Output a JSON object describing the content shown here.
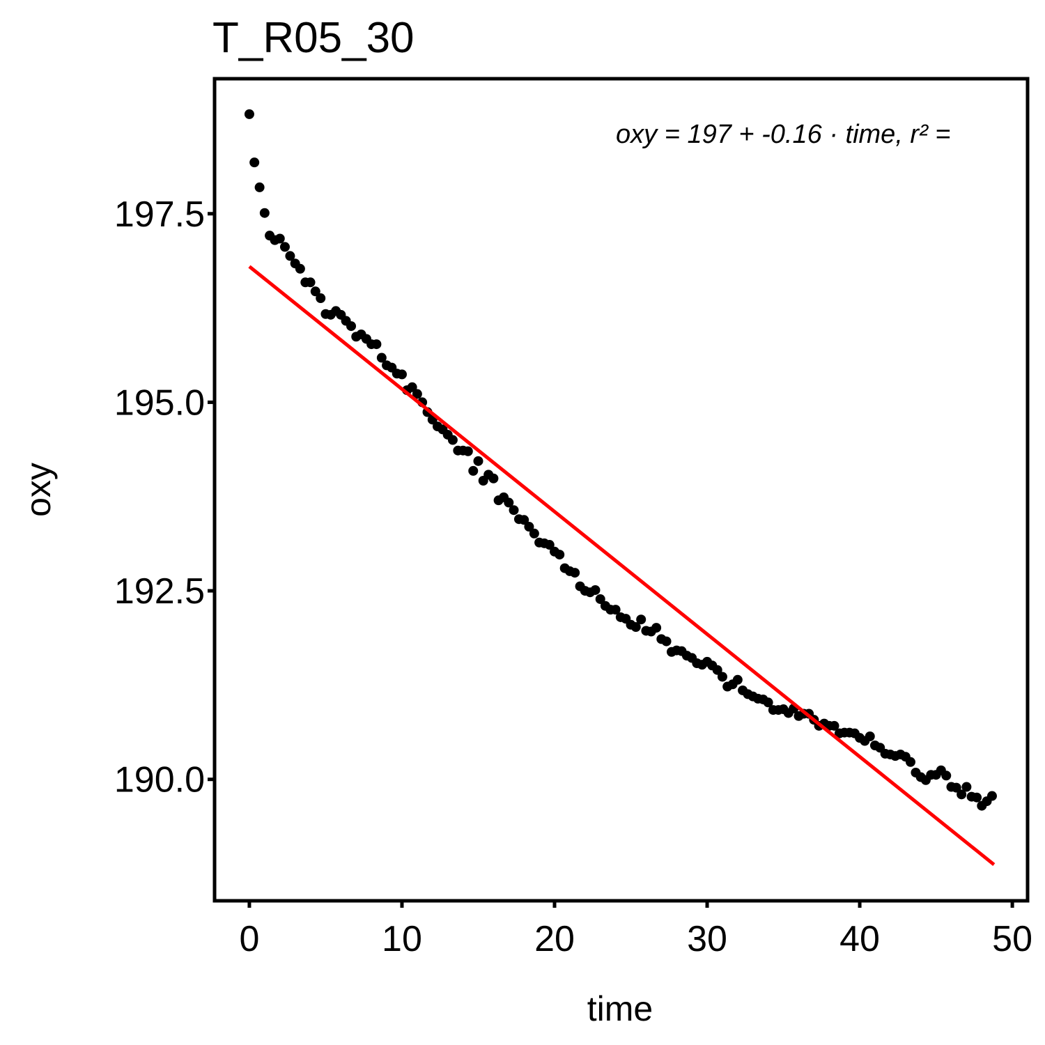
{
  "chart_data": {
    "type": "scatter",
    "title": "T_R05_30",
    "x_label": "time",
    "y_label": "oxy",
    "annotation": "oxy = 197 + -0.16 · time,  r² =",
    "xlim": [
      -2.28,
      51.0
    ],
    "ylim": [
      188.39,
      199.29
    ],
    "xticks": [
      0,
      10,
      20,
      30,
      40,
      50
    ],
    "yticks": [
      {
        "value": 190,
        "label": "190.0"
      },
      192.5,
      {
        "value": 195,
        "label": "195.0"
      },
      197.5
    ],
    "point_color": "#000000",
    "x": [
      0,
      0.33,
      0.67,
      1,
      1.33,
      1.67,
      2,
      2.33,
      2.67,
      3,
      3.33,
      3.67,
      4,
      4.33,
      4.67,
      5,
      5.33,
      5.67,
      6,
      6.33,
      6.67,
      7,
      7.33,
      7.67,
      8,
      8.33,
      8.67,
      9,
      9.33,
      9.67,
      10,
      10.33,
      10.67,
      11,
      11.33,
      11.67,
      12,
      12.33,
      12.67,
      13,
      13.33,
      13.67,
      14,
      14.33,
      14.67,
      15,
      15.33,
      15.67,
      16,
      16.33,
      16.67,
      17,
      17.33,
      17.67,
      18,
      18.33,
      18.67,
      19,
      19.33,
      19.67,
      20,
      20.33,
      20.67,
      21,
      21.33,
      21.67,
      22,
      22.33,
      22.67,
      23,
      23.33,
      23.67,
      24,
      24.33,
      24.67,
      25,
      25.33,
      25.67,
      26,
      26.33,
      26.67,
      27,
      27.33,
      27.67,
      28,
      28.33,
      28.67,
      29,
      29.33,
      29.67,
      30,
      30.33,
      30.67,
      31,
      31.33,
      31.67,
      32,
      32.33,
      32.67,
      33,
      33.33,
      33.67,
      34,
      34.33,
      34.67,
      35,
      35.33,
      35.67,
      36,
      36.33,
      36.67,
      37,
      37.33,
      37.67,
      38,
      38.33,
      38.67,
      39,
      39.33,
      39.67,
      40,
      40.33,
      40.67,
      41,
      41.33,
      41.67,
      42,
      42.33,
      42.67,
      43,
      43.33,
      43.67,
      44,
      44.33,
      44.67,
      45,
      45.33,
      45.67,
      46,
      46.33,
      46.67,
      47,
      47.33,
      47.67,
      48,
      48.33,
      48.67
    ],
    "values": [
      198.82,
      198.18,
      197.85,
      197.51,
      197.21,
      197.15,
      197.17,
      197.06,
      196.94,
      196.84,
      196.77,
      196.59,
      196.59,
      196.47,
      196.38,
      196.17,
      196.16,
      196.21,
      196.16,
      196.08,
      196.01,
      195.87,
      195.9,
      195.84,
      195.77,
      195.77,
      195.59,
      195.49,
      195.46,
      195.38,
      195.37,
      195.16,
      195.2,
      195.11,
      195.0,
      194.87,
      194.77,
      194.68,
      194.64,
      194.57,
      194.5,
      194.36,
      194.36,
      194.35,
      194.09,
      194.22,
      193.96,
      194.04,
      193.99,
      193.7,
      193.74,
      193.67,
      193.57,
      193.45,
      193.44,
      193.35,
      193.26,
      193.14,
      193.13,
      193.11,
      193.02,
      192.98,
      192.8,
      192.76,
      192.74,
      192.56,
      192.5,
      192.48,
      192.51,
      192.39,
      192.3,
      192.25,
      192.25,
      192.15,
      192.13,
      192.05,
      192.02,
      192.12,
      191.97,
      191.96,
      192.01,
      191.86,
      191.83,
      191.69,
      191.71,
      191.7,
      191.64,
      191.61,
      191.54,
      191.52,
      191.56,
      191.51,
      191.45,
      191.36,
      191.23,
      191.26,
      191.32,
      191.18,
      191.13,
      191.1,
      191.07,
      191.06,
      191.02,
      190.92,
      190.92,
      190.93,
      190.88,
      190.94,
      190.84,
      190.87,
      190.87,
      190.79,
      190.71,
      190.74,
      190.71,
      190.71,
      190.61,
      190.62,
      190.62,
      190.61,
      190.55,
      190.51,
      190.57,
      190.45,
      190.42,
      190.34,
      190.33,
      190.31,
      190.33,
      190.3,
      190.23,
      190.09,
      190.03,
      189.99,
      190.06,
      190.06,
      190.12,
      190.05,
      189.9,
      189.89,
      189.8,
      189.9,
      189.77,
      189.76,
      189.65,
      189.71,
      189.78
    ],
    "fit": {
      "color": "#ff0000",
      "x": [
        0,
        48.8
      ],
      "values": [
        196.8,
        188.87
      ]
    }
  }
}
